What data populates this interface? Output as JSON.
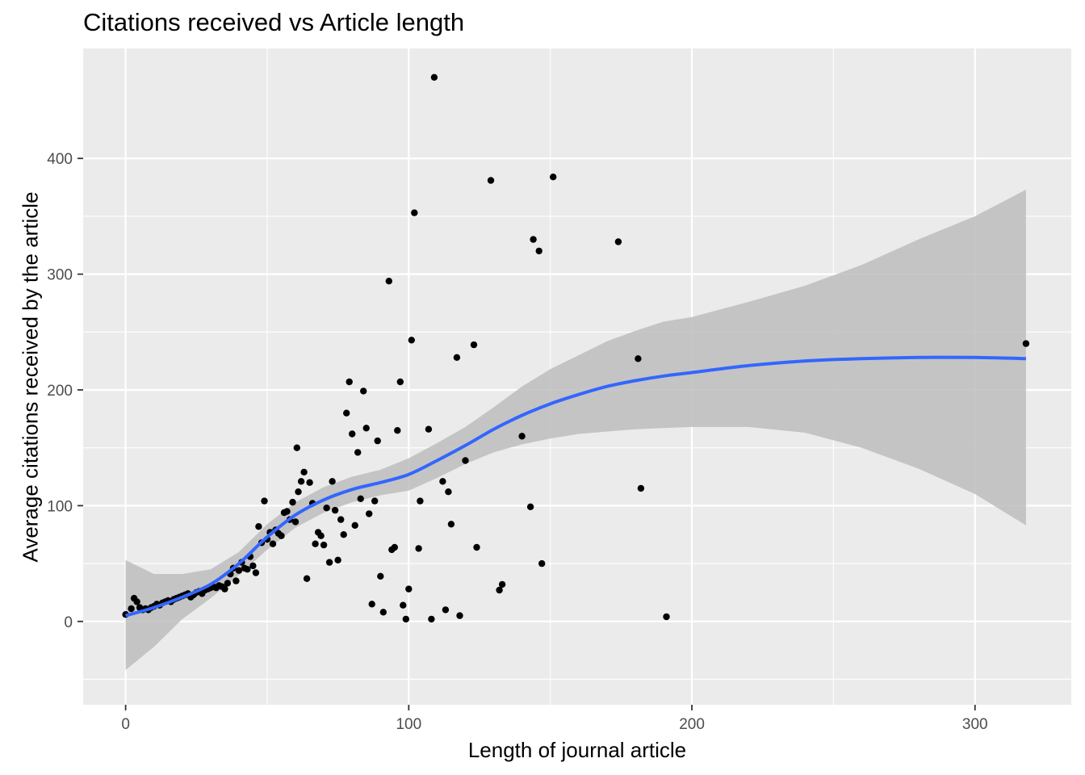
{
  "chart_data": {
    "type": "scatter",
    "title": "Citations received vs Article length",
    "xlabel": "Length of journal article",
    "ylabel": "Average citations received by the article",
    "xlim": [
      -15,
      334
    ],
    "ylim": [
      -72,
      495
    ],
    "x_ticks": [
      0,
      100,
      200,
      300
    ],
    "y_ticks": [
      0,
      100,
      200,
      300,
      400
    ],
    "x_tick_labels": [
      "0",
      "100",
      "200",
      "300"
    ],
    "y_tick_labels": [
      "0",
      "100",
      "200",
      "300",
      "400"
    ],
    "grid": true,
    "legend": "none",
    "colors": {
      "panel_background": "#ebebeb",
      "grid": "#ffffff",
      "points": "#000000",
      "smooth_line": "#3366ff",
      "confidence_band": "#bdbdbd"
    },
    "points": [
      [
        0,
        6
      ],
      [
        2,
        11
      ],
      [
        3,
        20
      ],
      [
        4,
        17
      ],
      [
        5,
        12
      ],
      [
        6,
        10
      ],
      [
        7,
        11
      ],
      [
        8,
        10
      ],
      [
        9,
        12
      ],
      [
        10,
        13
      ],
      [
        11,
        15
      ],
      [
        12,
        14
      ],
      [
        13,
        16
      ],
      [
        14,
        17
      ],
      [
        15,
        18
      ],
      [
        16,
        17
      ],
      [
        17,
        19
      ],
      [
        18,
        20
      ],
      [
        19,
        21
      ],
      [
        20,
        22
      ],
      [
        21,
        23
      ],
      [
        22,
        24
      ],
      [
        23,
        21
      ],
      [
        24,
        23
      ],
      [
        25,
        25
      ],
      [
        26,
        26
      ],
      [
        27,
        24
      ],
      [
        28,
        27
      ],
      [
        29,
        28
      ],
      [
        30,
        29
      ],
      [
        31,
        30
      ],
      [
        32,
        29
      ],
      [
        33,
        31
      ],
      [
        34,
        30
      ],
      [
        35,
        28
      ],
      [
        36,
        33
      ],
      [
        37,
        41
      ],
      [
        38,
        46
      ],
      [
        39,
        35
      ],
      [
        40,
        44
      ],
      [
        41,
        51
      ],
      [
        42,
        46
      ],
      [
        43,
        45
      ],
      [
        44,
        56
      ],
      [
        45,
        48
      ],
      [
        46,
        42
      ],
      [
        47,
        82
      ],
      [
        48,
        68
      ],
      [
        49,
        104
      ],
      [
        50,
        71
      ],
      [
        51,
        77
      ],
      [
        52,
        67
      ],
      [
        53,
        79
      ],
      [
        54,
        76
      ],
      [
        55,
        74
      ],
      [
        56,
        94
      ],
      [
        57,
        95
      ],
      [
        58,
        88
      ],
      [
        59,
        103
      ],
      [
        60,
        86
      ],
      [
        60.5,
        150
      ],
      [
        61,
        112
      ],
      [
        62,
        121
      ],
      [
        63,
        129
      ],
      [
        64,
        37
      ],
      [
        65,
        120
      ],
      [
        66,
        102
      ],
      [
        67,
        67
      ],
      [
        68,
        77
      ],
      [
        69,
        74
      ],
      [
        70,
        66
      ],
      [
        71,
        98
      ],
      [
        72,
        51
      ],
      [
        73,
        121
      ],
      [
        74,
        96
      ],
      [
        75,
        53
      ],
      [
        76,
        88
      ],
      [
        77,
        75
      ],
      [
        78,
        180
      ],
      [
        79,
        207
      ],
      [
        80,
        162
      ],
      [
        81,
        83
      ],
      [
        82,
        146
      ],
      [
        83,
        106
      ],
      [
        84,
        199
      ],
      [
        85,
        167
      ],
      [
        86,
        93
      ],
      [
        87,
        15
      ],
      [
        88,
        104
      ],
      [
        89,
        156
      ],
      [
        90,
        39
      ],
      [
        91,
        8
      ],
      [
        93,
        294
      ],
      [
        94,
        62
      ],
      [
        95,
        64
      ],
      [
        96,
        165
      ],
      [
        97,
        207
      ],
      [
        98,
        14
      ],
      [
        99,
        2
      ],
      [
        100,
        28
      ],
      [
        101,
        243
      ],
      [
        102,
        353
      ],
      [
        104,
        104
      ],
      [
        103.5,
        63
      ],
      [
        107,
        166
      ],
      [
        108,
        2
      ],
      [
        109,
        470
      ],
      [
        112,
        121
      ],
      [
        113,
        10
      ],
      [
        114,
        112
      ],
      [
        115,
        84
      ],
      [
        117,
        228
      ],
      [
        118,
        5
      ],
      [
        120,
        139
      ],
      [
        123,
        239
      ],
      [
        124,
        64
      ],
      [
        129,
        381
      ],
      [
        132,
        27
      ],
      [
        133,
        32
      ],
      [
        140,
        160
      ],
      [
        143,
        99
      ],
      [
        144,
        330
      ],
      [
        146,
        320
      ],
      [
        147,
        50
      ],
      [
        151,
        384
      ],
      [
        174,
        328
      ],
      [
        181,
        227
      ],
      [
        182,
        115
      ],
      [
        191,
        4
      ],
      [
        318,
        240
      ]
    ],
    "smooth_line": {
      "x": [
        0,
        10,
        20,
        30,
        40,
        50,
        60,
        70,
        80,
        90,
        100,
        110,
        120,
        130,
        140,
        150,
        160,
        170,
        180,
        190,
        200,
        220,
        240,
        260,
        280,
        300,
        318
      ],
      "y": [
        5,
        12,
        21,
        32,
        50,
        73,
        92,
        105,
        114,
        120,
        127,
        139,
        152,
        166,
        178,
        188,
        196,
        203,
        208,
        212,
        215,
        221,
        225,
        227,
        228,
        228,
        227
      ]
    },
    "confidence_band": {
      "x": [
        0,
        10,
        20,
        30,
        40,
        50,
        60,
        70,
        80,
        90,
        100,
        110,
        120,
        130,
        140,
        150,
        160,
        170,
        180,
        190,
        200,
        220,
        240,
        260,
        280,
        300,
        318
      ],
      "lower": [
        -42,
        -22,
        2,
        20,
        40,
        62,
        81,
        94,
        103,
        109,
        113,
        124,
        136,
        146,
        153,
        158,
        162,
        164,
        166,
        167,
        168,
        168,
        163,
        150,
        132,
        110,
        83
      ],
      "upper": [
        53,
        41,
        41,
        45,
        60,
        84,
        103,
        116,
        125,
        131,
        141,
        154,
        168,
        185,
        203,
        218,
        230,
        242,
        251,
        259,
        263,
        276,
        290,
        308,
        330,
        350,
        373
      ]
    }
  }
}
